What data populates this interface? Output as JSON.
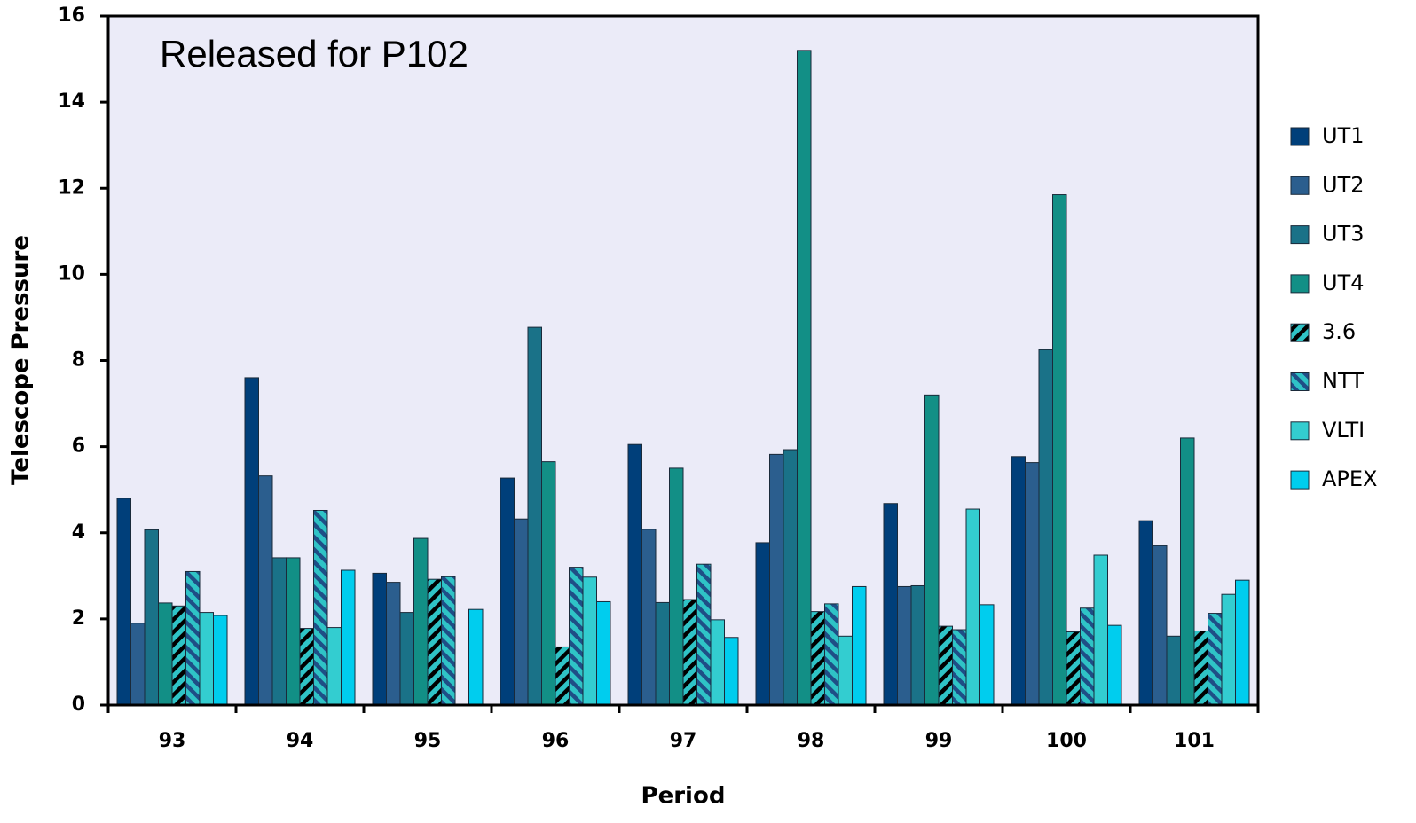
{
  "chart_data": {
    "type": "bar",
    "annotation": "Released for P102",
    "x_label": "Period",
    "y_label": "Telescope Pressure",
    "categories": [
      "93",
      "94",
      "95",
      "96",
      "97",
      "98",
      "99",
      "100",
      "101"
    ],
    "series": [
      {
        "name": "UT1",
        "color": "#003f7a",
        "values": [
          4.8,
          7.6,
          3.06,
          5.27,
          6.05,
          3.77,
          4.68,
          5.77,
          4.28
        ]
      },
      {
        "name": "UT2",
        "color": "#2b5e8e",
        "values": [
          1.9,
          5.32,
          2.85,
          4.32,
          4.08,
          5.82,
          2.75,
          5.63,
          3.7
        ]
      },
      {
        "name": "UT3",
        "color": "#1a7288",
        "values": [
          4.07,
          3.42,
          2.15,
          8.77,
          2.38,
          5.93,
          2.77,
          8.25,
          1.6
        ]
      },
      {
        "name": "UT4",
        "color": "#128f86",
        "values": [
          2.37,
          3.42,
          3.87,
          5.65,
          5.5,
          15.2,
          7.2,
          11.85,
          6.2
        ]
      },
      {
        "name": "3.6",
        "color": "#2fc3c6",
        "hatch": "/",
        "hatch_color": "#000000",
        "values": [
          2.3,
          1.78,
          2.92,
          1.35,
          2.45,
          2.17,
          1.83,
          1.7,
          1.72
        ]
      },
      {
        "name": "NTT",
        "color": "#2fc3c6",
        "hatch": "\\",
        "hatch_color": "#1f4e86",
        "values": [
          3.1,
          4.52,
          2.98,
          3.2,
          3.27,
          2.35,
          1.75,
          2.25,
          2.13
        ]
      },
      {
        "name": "VLTI",
        "color": "#33cdd0",
        "values": [
          2.15,
          1.8,
          0,
          2.97,
          1.98,
          1.6,
          4.55,
          3.48,
          2.57
        ]
      },
      {
        "name": "APEX",
        "color": "#00cdee",
        "values": [
          2.08,
          3.13,
          2.22,
          2.4,
          1.57,
          2.75,
          2.33,
          1.85,
          2.9
        ]
      }
    ],
    "ylim": [
      0,
      16
    ],
    "yticks": [
      0,
      2,
      4,
      6,
      8,
      10,
      12,
      14,
      16
    ],
    "plot_background": "#ebebf8",
    "legend": "right"
  }
}
